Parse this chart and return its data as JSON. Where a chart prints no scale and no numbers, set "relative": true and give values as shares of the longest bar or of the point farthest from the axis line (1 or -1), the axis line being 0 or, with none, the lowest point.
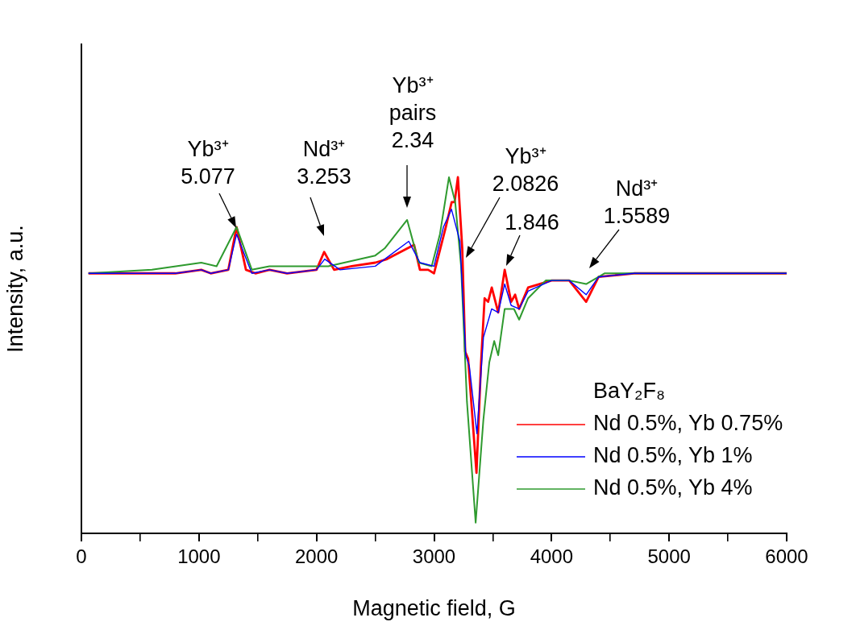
{
  "chart_data": {
    "type": "line",
    "relative": true,
    "xlabel": "Magnetic field, G",
    "ylabel": "Intensity, a.u.",
    "legend_title": "BaY₂F₈",
    "legend": "bottom right",
    "grid": false,
    "marker": "none",
    "line_style": "solid",
    "xlim": [
      0,
      6000
    ],
    "xticks": [
      0,
      {
        "value": 500,
        "label": null
      },
      1000,
      {
        "value": 1500,
        "label": null
      },
      2000,
      {
        "value": 2500,
        "label": null
      },
      3000,
      {
        "value": 3500,
        "label": null
      },
      4000,
      {
        "value": 4500,
        "label": null
      },
      5000,
      {
        "value": 5500,
        "label": null
      },
      6000
    ],
    "series": [
      {
        "name": "Nd 0.5%, Yb 0.75%",
        "color": "#ff0000",
        "x": [
          60,
          800,
          1020,
          1100,
          1250,
          1320,
          1400,
          1480,
          1600,
          1750,
          2000,
          2065,
          2150,
          2300,
          2500,
          2600,
          2830,
          2880,
          2950,
          3000,
          3100,
          3150,
          3175,
          3203,
          3240,
          3265,
          3290,
          3361,
          3400,
          3430,
          3460,
          3491,
          3546,
          3601,
          3656,
          3690,
          3724,
          3800,
          4000,
          4150,
          4294,
          4400,
          4700,
          6000
        ],
        "values": [
          0.73,
          0.73,
          0.74,
          0.73,
          0.74,
          0.86,
          0.74,
          0.73,
          0.74,
          0.73,
          0.74,
          0.79,
          0.74,
          0.75,
          0.76,
          0.77,
          0.81,
          0.74,
          0.74,
          0.73,
          0.86,
          0.93,
          0.93,
          1.0,
          0.8,
          0.51,
          0.49,
          0.17,
          0.48,
          0.66,
          0.65,
          0.69,
          0.62,
          0.74,
          0.65,
          0.67,
          0.63,
          0.69,
          0.71,
          0.71,
          0.65,
          0.72,
          0.73,
          0.73
        ]
      },
      {
        "name": "Nd 0.5%, Yb 1%",
        "color": "#0000ff",
        "x": [
          60,
          800,
          1020,
          1100,
          1250,
          1320,
          1450,
          1600,
          1750,
          2000,
          2070,
          2200,
          2500,
          2785,
          2880,
          3000,
          3080,
          3148,
          3220,
          3270,
          3300,
          3365,
          3420,
          3490,
          3546,
          3601,
          3656,
          3724,
          3800,
          4000,
          4150,
          4294,
          4400,
          4700,
          6000
        ],
        "values": [
          0.73,
          0.73,
          0.74,
          0.73,
          0.74,
          0.84,
          0.73,
          0.74,
          0.73,
          0.74,
          0.77,
          0.74,
          0.75,
          0.82,
          0.76,
          0.75,
          0.86,
          0.91,
          0.82,
          0.5,
          0.47,
          0.28,
          0.55,
          0.63,
          0.62,
          0.7,
          0.64,
          0.63,
          0.68,
          0.71,
          0.71,
          0.67,
          0.72,
          0.73,
          0.73
        ]
      },
      {
        "name": "Nd 0.5%, Yb 4%",
        "color": "#2e9a2e",
        "x": [
          60,
          600,
          1020,
          1150,
          1320,
          1450,
          1600,
          1800,
          2100,
          2500,
          2580,
          2771,
          2870,
          2980,
          3050,
          3127,
          3180,
          3230,
          3280,
          3354,
          3420,
          3470,
          3512,
          3546,
          3601,
          3680,
          3724,
          3800,
          3950,
          4150,
          4294,
          4450,
          6000
        ],
        "values": [
          0.73,
          0.74,
          0.76,
          0.75,
          0.86,
          0.74,
          0.75,
          0.75,
          0.75,
          0.78,
          0.8,
          0.88,
          0.76,
          0.75,
          0.84,
          1.0,
          0.93,
          0.75,
          0.37,
          0.03,
          0.32,
          0.48,
          0.54,
          0.5,
          0.63,
          0.63,
          0.6,
          0.66,
          0.71,
          0.71,
          0.7,
          0.73,
          0.73
        ]
      }
    ],
    "annotations": [
      "Yb³⁺\n5.077",
      "Nd³⁺\n3.253",
      "Yb³⁺\npairs\n2.34",
      "Yb³⁺\n2.0826",
      "1.846",
      "Nd³⁺\n1.5589"
    ]
  }
}
